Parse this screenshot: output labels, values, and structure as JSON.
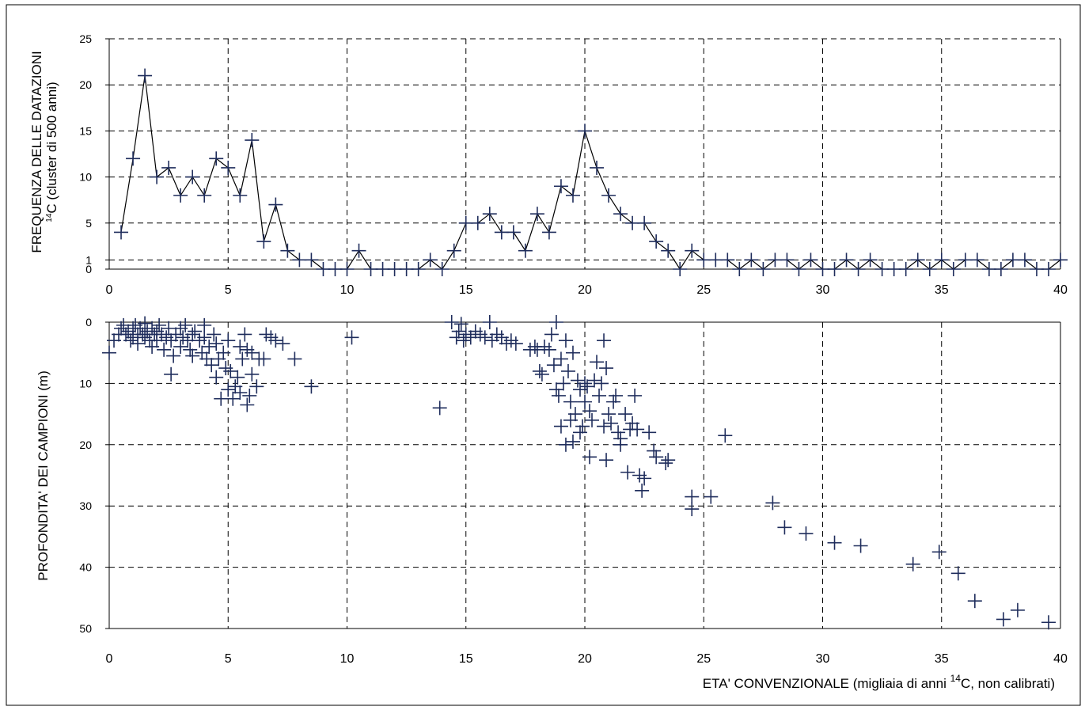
{
  "chart_data": [
    {
      "type": "line",
      "ylabel_line1": "FREQUENZA DELLE DATAZIONI",
      "ylabel_line2": "C (cluster di 500 anni)",
      "ylabel_line2_sup": "14",
      "xlim": [
        0,
        40
      ],
      "ylim": [
        0,
        25
      ],
      "xticks": [
        "0",
        "5",
        "10",
        "15",
        "20",
        "25",
        "30",
        "35",
        "40"
      ],
      "yticks": [
        "0",
        "1",
        "5",
        "10",
        "15",
        "20",
        "25"
      ],
      "grid": true,
      "x": [
        0.5,
        1,
        1.5,
        2,
        2.5,
        3,
        3.5,
        4,
        4.5,
        5,
        5.5,
        6,
        6.5,
        7,
        7.5,
        8,
        8.5,
        9,
        9.5,
        10,
        10.5,
        11,
        11.5,
        12,
        12.5,
        13,
        13.5,
        14,
        14.5,
        15,
        15.5,
        16,
        16.5,
        17,
        17.5,
        18,
        18.5,
        19,
        19.5,
        20,
        20.5,
        21,
        21.5,
        22,
        22.5,
        23,
        23.5,
        24,
        24.5,
        25,
        25.5,
        26,
        26.5,
        27,
        27.5,
        28,
        28.5,
        29,
        29.5,
        30,
        30.5,
        31,
        31.5,
        32,
        32.5,
        33,
        33.5,
        34,
        34.5,
        35,
        35.5,
        36,
        36.5,
        37,
        37.5,
        38,
        38.5,
        39,
        39.5,
        40
      ],
      "y": [
        4,
        12,
        21,
        10,
        11,
        8,
        10,
        8,
        12,
        11,
        8,
        14,
        3,
        7,
        2,
        1,
        1,
        0,
        0,
        0,
        2,
        0,
        0,
        0,
        0,
        0,
        1,
        0,
        2,
        5,
        5,
        6,
        4,
        4,
        2,
        6,
        4,
        9,
        8,
        15,
        11,
        8,
        6,
        5,
        5,
        3,
        2,
        0,
        2,
        1,
        1,
        1,
        0,
        1,
        0,
        1,
        1,
        0,
        1,
        0,
        0,
        1,
        0,
        1,
        0,
        0,
        0,
        1,
        0,
        1,
        0,
        1,
        1,
        0,
        0,
        1,
        1,
        0,
        0,
        1
      ]
    },
    {
      "type": "scatter",
      "ylabel": "PROFONDITA' DEI CAMPIONI (m)",
      "xlabel_prefix": "ETA' CONVENZIONALE  (migliaia di anni ",
      "xlabel_sup": "14",
      "xlabel_suffix": "C, non calibrati)",
      "xlim": [
        0,
        40
      ],
      "ylim": [
        0,
        50
      ],
      "y_inverted": true,
      "xticks": [
        "0",
        "5",
        "10",
        "15",
        "20",
        "25",
        "30",
        "35",
        "40"
      ],
      "yticks": [
        "0",
        "10",
        "20",
        "30",
        "40",
        "50"
      ],
      "grid": true,
      "points": [
        [
          0,
          5
        ],
        [
          0.2,
          3
        ],
        [
          0.4,
          2
        ],
        [
          0.5,
          1
        ],
        [
          0.6,
          0.5
        ],
        [
          0.7,
          2
        ],
        [
          0.8,
          1.5
        ],
        [
          0.9,
          3
        ],
        [
          1,
          1
        ],
        [
          1,
          2.5
        ],
        [
          1.1,
          0.5
        ],
        [
          1.2,
          2
        ],
        [
          1.2,
          3.5
        ],
        [
          1.3,
          1
        ],
        [
          1.4,
          2
        ],
        [
          1.5,
          2.5
        ],
        [
          1.5,
          0.2
        ],
        [
          1.6,
          1.5
        ],
        [
          1.7,
          3
        ],
        [
          1.8,
          1
        ],
        [
          1.8,
          4
        ],
        [
          1.9,
          2
        ],
        [
          2,
          1.5
        ],
        [
          2,
          3
        ],
        [
          2.1,
          0.5
        ],
        [
          2.2,
          2
        ],
        [
          2.3,
          4.5
        ],
        [
          2.4,
          2.5
        ],
        [
          2.5,
          1
        ],
        [
          2.6,
          3
        ],
        [
          2.7,
          5.5
        ],
        [
          2.8,
          2
        ],
        [
          3,
          1
        ],
        [
          3,
          4
        ],
        [
          3.1,
          2.5
        ],
        [
          3.2,
          0.5
        ],
        [
          3.3,
          3
        ],
        [
          3.4,
          4.5
        ],
        [
          3.5,
          2
        ],
        [
          3.5,
          5.5
        ],
        [
          3.6,
          1.5
        ],
        [
          3.8,
          3
        ],
        [
          3.9,
          5
        ],
        [
          4,
          0.5
        ],
        [
          4,
          2.5
        ],
        [
          4.1,
          6
        ],
        [
          4.2,
          4
        ],
        [
          4.3,
          7
        ],
        [
          4.4,
          2
        ],
        [
          4.5,
          3.5
        ],
        [
          4.5,
          9
        ],
        [
          4.6,
          6
        ],
        [
          4.7,
          12.5
        ],
        [
          4.8,
          5
        ],
        [
          4.9,
          7.5
        ],
        [
          5,
          3
        ],
        [
          5,
          11
        ],
        [
          5.1,
          8
        ],
        [
          5.2,
          12.5
        ],
        [
          5.3,
          10.5
        ],
        [
          5.4,
          9
        ],
        [
          5.5,
          4
        ],
        [
          5.5,
          11.5
        ],
        [
          5.6,
          6
        ],
        [
          5.7,
          2
        ],
        [
          5.8,
          4.5
        ],
        [
          5.8,
          13.5
        ],
        [
          5.9,
          12
        ],
        [
          6,
          8.5
        ],
        [
          6,
          5
        ],
        [
          6.2,
          10.5
        ],
        [
          6.3,
          6
        ],
        [
          6.5,
          6
        ],
        [
          6.6,
          2
        ],
        [
          6.8,
          2.5
        ],
        [
          7,
          3
        ],
        [
          7.3,
          3.5
        ],
        [
          7.8,
          6
        ],
        [
          8.5,
          10.5
        ],
        [
          2.6,
          8.5
        ],
        [
          10.2,
          2.5
        ],
        [
          13.9,
          14
        ],
        [
          14.4,
          0
        ],
        [
          14.6,
          2.5
        ],
        [
          14.7,
          1.5
        ],
        [
          14.8,
          0.3
        ],
        [
          14.9,
          3
        ],
        [
          15,
          2
        ],
        [
          15.2,
          2.5
        ],
        [
          15.4,
          1.5
        ],
        [
          15.6,
          2
        ],
        [
          15.8,
          2.5
        ],
        [
          16,
          0
        ],
        [
          16.1,
          3
        ],
        [
          16.3,
          2
        ],
        [
          16.5,
          2.5
        ],
        [
          16.7,
          3.5
        ],
        [
          16.9,
          3
        ],
        [
          17.1,
          3.5
        ],
        [
          17.7,
          4.5
        ],
        [
          17.9,
          4
        ],
        [
          18,
          4.5
        ],
        [
          18.1,
          8
        ],
        [
          18.2,
          8.5
        ],
        [
          18.3,
          4
        ],
        [
          18.5,
          4.5
        ],
        [
          18.6,
          2
        ],
        [
          18.7,
          7
        ],
        [
          18.8,
          0
        ],
        [
          18.8,
          11
        ],
        [
          18.9,
          12
        ],
        [
          19,
          6
        ],
        [
          19,
          17
        ],
        [
          19.1,
          10
        ],
        [
          19.2,
          3
        ],
        [
          19.2,
          20
        ],
        [
          19.3,
          8
        ],
        [
          19.4,
          13
        ],
        [
          19.4,
          16
        ],
        [
          19.5,
          5
        ],
        [
          19.5,
          19.5
        ],
        [
          19.6,
          15
        ],
        [
          19.7,
          9.5
        ],
        [
          19.8,
          18
        ],
        [
          19.8,
          11
        ],
        [
          19.9,
          17
        ],
        [
          20,
          10
        ],
        [
          20,
          13
        ],
        [
          20.1,
          10.5
        ],
        [
          20.2,
          14.5
        ],
        [
          20.2,
          22
        ],
        [
          20.3,
          16
        ],
        [
          20.4,
          9.5
        ],
        [
          20.5,
          6.5
        ],
        [
          20.6,
          12
        ],
        [
          20.7,
          10
        ],
        [
          20.8,
          3
        ],
        [
          20.8,
          17
        ],
        [
          20.9,
          7.5
        ],
        [
          20.9,
          22.5
        ],
        [
          21,
          15
        ],
        [
          21.1,
          16.5
        ],
        [
          21.2,
          13
        ],
        [
          21.3,
          12
        ],
        [
          21.4,
          18
        ],
        [
          21.5,
          20
        ],
        [
          21.5,
          19
        ],
        [
          21.7,
          15
        ],
        [
          21.8,
          24.5
        ],
        [
          21.9,
          17.5
        ],
        [
          22,
          16.5
        ],
        [
          22.1,
          12
        ],
        [
          22.2,
          17.5
        ],
        [
          22.3,
          25
        ],
        [
          22.4,
          27.5
        ],
        [
          22.5,
          25.5
        ],
        [
          22.7,
          18
        ],
        [
          22.9,
          21
        ],
        [
          23,
          22
        ],
        [
          23.4,
          23
        ],
        [
          23.5,
          22.5
        ],
        [
          24.5,
          28.5
        ],
        [
          24.5,
          30.5
        ],
        [
          25.3,
          28.5
        ],
        [
          25.9,
          18.5
        ],
        [
          27.9,
          29.5
        ],
        [
          28.4,
          33.5
        ],
        [
          29.3,
          34.5
        ],
        [
          30.5,
          36
        ],
        [
          31.6,
          36.5
        ],
        [
          33.8,
          39.5
        ],
        [
          34.9,
          37.5
        ],
        [
          35.7,
          41
        ],
        [
          36.4,
          45.5
        ],
        [
          37.6,
          48.5
        ],
        [
          38.2,
          47
        ],
        [
          39.5,
          49
        ]
      ]
    }
  ]
}
